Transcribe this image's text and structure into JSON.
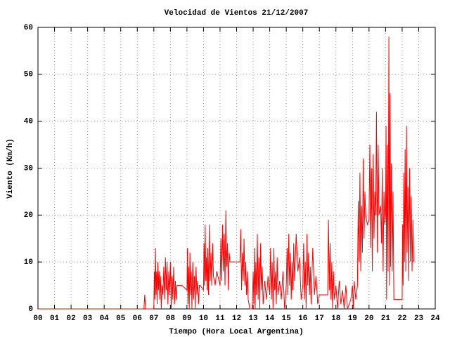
{
  "chart_data": {
    "type": "line",
    "title": "Velocidad de Vientos 21/12/2007",
    "xlabel": "Tiempo (Hora Local Argentina)",
    "ylabel": "Viento (Km/h)",
    "color": "#ff0000",
    "grid": true,
    "xlim": [
      0,
      24
    ],
    "ylim": [
      0,
      60
    ],
    "yticks": [
      0,
      10,
      20,
      30,
      40,
      50,
      60
    ],
    "xticks": [
      {
        "value": 0,
        "label": "00"
      },
      {
        "value": 1,
        "label": "01"
      },
      {
        "value": 2,
        "label": "02"
      },
      {
        "value": 3,
        "label": "03"
      },
      {
        "value": 4,
        "label": "04"
      },
      {
        "value": 5,
        "label": "05"
      },
      {
        "value": 6,
        "label": "06"
      },
      {
        "value": 7,
        "label": "07"
      },
      {
        "value": 8,
        "label": "08"
      },
      {
        "value": 9,
        "label": "09"
      },
      10,
      11,
      12,
      13,
      14,
      15,
      16,
      17,
      18,
      19,
      20,
      21,
      22,
      23,
      24
    ],
    "x": [
      0,
      6.4,
      6.45,
      6.5,
      6.9,
      7.0,
      7.03,
      7.06,
      7.1,
      7.13,
      7.17,
      7.2,
      7.24,
      7.28,
      7.32,
      7.36,
      7.4,
      7.45,
      7.5,
      7.55,
      7.6,
      7.65,
      7.7,
      7.75,
      7.8,
      7.85,
      7.9,
      7.95,
      8.0,
      8.05,
      8.1,
      8.15,
      8.2,
      8.25,
      8.3,
      8.35,
      8.4,
      8.7,
      9.0,
      9.03,
      9.06,
      9.1,
      9.14,
      9.18,
      9.22,
      9.26,
      9.3,
      9.35,
      9.4,
      9.45,
      9.5,
      9.55,
      9.6,
      9.65,
      9.7,
      9.75,
      9.8,
      10.0,
      10.03,
      10.06,
      10.1,
      10.14,
      10.18,
      10.22,
      10.26,
      10.3,
      10.35,
      10.4,
      10.45,
      10.5,
      10.55,
      10.6,
      10.7,
      10.8,
      11.0,
      11.05,
      11.1,
      11.15,
      11.2,
      11.25,
      11.3,
      11.35,
      11.4,
      11.45,
      11.5,
      11.55,
      11.6,
      11.65,
      12.2,
      12.25,
      12.3,
      12.35,
      12.4,
      12.45,
      12.5,
      12.55,
      12.6,
      12.65,
      12.7,
      12.8,
      12.95,
      13.0,
      13.04,
      13.08,
      13.12,
      13.16,
      13.2,
      13.25,
      13.3,
      13.35,
      13.4,
      13.45,
      13.5,
      13.55,
      13.6,
      13.7,
      13.8,
      13.9,
      14.0,
      14.05,
      14.1,
      14.15,
      14.2,
      14.25,
      14.3,
      14.35,
      14.4,
      14.45,
      14.5,
      14.6,
      14.7,
      14.8,
      14.9,
      15.0,
      15.05,
      15.1,
      15.15,
      15.2,
      15.25,
      15.3,
      15.35,
      15.4,
      15.45,
      15.5,
      15.6,
      15.7,
      15.8,
      15.9,
      16.0,
      16.05,
      16.1,
      16.15,
      16.2,
      16.25,
      16.3,
      16.35,
      16.4,
      16.45,
      16.5,
      16.6,
      16.7,
      16.8,
      16.9,
      17.0,
      17.5,
      17.55,
      17.6,
      17.65,
      17.7,
      17.75,
      17.8,
      17.85,
      17.9,
      18.0,
      18.1,
      18.2,
      18.3,
      18.4,
      18.5,
      18.6,
      18.7,
      18.9,
      19.0,
      19.05,
      19.1,
      19.2,
      19.3,
      19.35,
      19.4,
      19.45,
      19.5,
      19.55,
      19.6,
      19.65,
      19.7,
      19.75,
      19.8,
      19.9,
      20.0,
      20.05,
      20.1,
      20.15,
      20.2,
      20.25,
      20.3,
      20.35,
      20.4,
      20.45,
      20.5,
      20.55,
      20.6,
      20.7,
      20.75,
      20.8,
      20.85,
      20.9,
      20.95,
      21.0,
      21.03,
      21.06,
      21.1,
      21.15,
      21.2,
      21.23,
      21.27,
      21.3,
      21.35,
      21.4,
      21.45,
      21.5,
      22.0,
      22.03,
      22.06,
      22.1,
      22.14,
      22.18,
      22.22,
      22.26,
      22.3,
      22.35,
      22.4,
      22.45,
      22.5,
      22.55,
      22.6,
      22.65,
      22.7
    ],
    "values": [
      0,
      0,
      3,
      0,
      0,
      0,
      8,
      2,
      13,
      3,
      8,
      1,
      10,
      4,
      8,
      2,
      7,
      0,
      5,
      3,
      9,
      2,
      11,
      4,
      10,
      1,
      8,
      3,
      10,
      0,
      7,
      2,
      9,
      1,
      6,
      2,
      5,
      5,
      4,
      13,
      1,
      9,
      0,
      12,
      3,
      8,
      0,
      10,
      2,
      7,
      0,
      9,
      3,
      6,
      1,
      5,
      5,
      4,
      14,
      5,
      18,
      6,
      11,
      4,
      13,
      3,
      18,
      6,
      12,
      5,
      14,
      7,
      5,
      8,
      5,
      15,
      6,
      18,
      8,
      16,
      5,
      21,
      9,
      14,
      4,
      12,
      10,
      10,
      10,
      17,
      4,
      12,
      6,
      15,
      5,
      10,
      3,
      8,
      2,
      0,
      0,
      8,
      1,
      13,
      0,
      10,
      3,
      16,
      2,
      11,
      0,
      14,
      4,
      9,
      1,
      6,
      2,
      7,
      3,
      13,
      2,
      10,
      0,
      13,
      4,
      8,
      1,
      11,
      3,
      6,
      2,
      8,
      0,
      5,
      13,
      3,
      16,
      5,
      12,
      2,
      10,
      4,
      14,
      6,
      16,
      8,
      11,
      2,
      5,
      14,
      2,
      10,
      0,
      16,
      5,
      12,
      3,
      9,
      1,
      13,
      3,
      7,
      1,
      3,
      3,
      19,
      4,
      14,
      2,
      10,
      0,
      8,
      2,
      5,
      0,
      6,
      1,
      4,
      0,
      5,
      0,
      2,
      5,
      0,
      6,
      2,
      5,
      23,
      10,
      29,
      8,
      22,
      12,
      32,
      15,
      25,
      20,
      18,
      19,
      35,
      13,
      30,
      8,
      33,
      15,
      25,
      20,
      42,
      12,
      35,
      20,
      22,
      14,
      30,
      8,
      25,
      18,
      20,
      39,
      2,
      35,
      8,
      58,
      5,
      46,
      9,
      31,
      8,
      25,
      2,
      2,
      18,
      5,
      29,
      10,
      34,
      8,
      39,
      12,
      26,
      6,
      30,
      10,
      24,
      8,
      19,
      10
    ]
  }
}
